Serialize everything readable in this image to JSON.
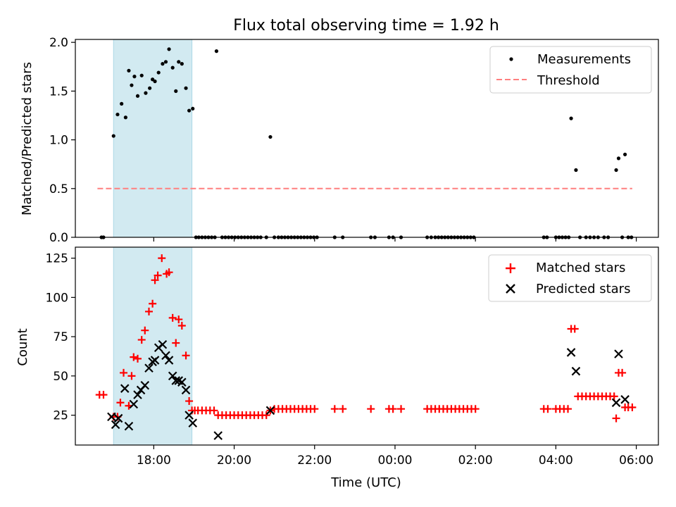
{
  "title": "Flux total observing time = 1.92 h",
  "colors": {
    "span": "#add8e6",
    "threshold": "#ff7f7f",
    "measurement": "#000000",
    "matched": "#ff0000",
    "predicted": "#000000"
  },
  "chart_data": [
    {
      "type": "scatter",
      "panel": "top",
      "ylabel": "Matched/Predicted stars",
      "xlim": [
        16.05,
        30.55
      ],
      "ylim": [
        0,
        2.03
      ],
      "yticks": [
        0.0,
        0.5,
        1.0,
        1.5,
        2.0
      ],
      "ytick_labels": [
        "0.0",
        "0.5",
        "1.0",
        "1.5",
        "2.0"
      ],
      "shaded_span": [
        17.0,
        18.95
      ],
      "legend": {
        "position": "top-right",
        "entries": [
          "Measurements",
          "Threshold"
        ]
      },
      "threshold": {
        "name": "Threshold",
        "value": 0.5,
        "x_range": [
          16.6,
          29.9
        ]
      },
      "series": [
        {
          "name": "Measurements",
          "points": [
            [
              16.7,
              0
            ],
            [
              16.75,
              0
            ],
            [
              17.0,
              1.04
            ],
            [
              17.1,
              1.26
            ],
            [
              17.2,
              1.37
            ],
            [
              17.3,
              1.23
            ],
            [
              17.38,
              1.71
            ],
            [
              17.45,
              1.56
            ],
            [
              17.52,
              1.65
            ],
            [
              17.6,
              1.45
            ],
            [
              17.7,
              1.66
            ],
            [
              17.8,
              1.48
            ],
            [
              17.9,
              1.53
            ],
            [
              17.97,
              1.62
            ],
            [
              18.03,
              1.6
            ],
            [
              18.12,
              1.69
            ],
            [
              18.22,
              1.78
            ],
            [
              18.3,
              1.8
            ],
            [
              18.38,
              1.93
            ],
            [
              18.47,
              1.74
            ],
            [
              18.55,
              1.5
            ],
            [
              18.62,
              1.8
            ],
            [
              18.7,
              1.78
            ],
            [
              18.8,
              1.53
            ],
            [
              18.88,
              1.3
            ],
            [
              18.97,
              1.32
            ],
            [
              19.05,
              0
            ],
            [
              19.12,
              0
            ],
            [
              19.2,
              0
            ],
            [
              19.28,
              0
            ],
            [
              19.36,
              0
            ],
            [
              19.44,
              0
            ],
            [
              19.52,
              0
            ],
            [
              19.56,
              1.91
            ],
            [
              19.7,
              0
            ],
            [
              19.78,
              0
            ],
            [
              19.86,
              0
            ],
            [
              19.94,
              0
            ],
            [
              20.02,
              0
            ],
            [
              20.1,
              0
            ],
            [
              20.18,
              0
            ],
            [
              20.26,
              0
            ],
            [
              20.34,
              0
            ],
            [
              20.42,
              0
            ],
            [
              20.5,
              0
            ],
            [
              20.58,
              0
            ],
            [
              20.66,
              0
            ],
            [
              20.8,
              0
            ],
            [
              20.9,
              1.03
            ],
            [
              21.0,
              0
            ],
            [
              21.1,
              0
            ],
            [
              21.18,
              0
            ],
            [
              21.26,
              0
            ],
            [
              21.34,
              0
            ],
            [
              21.42,
              0
            ],
            [
              21.5,
              0
            ],
            [
              21.58,
              0
            ],
            [
              21.66,
              0
            ],
            [
              21.74,
              0
            ],
            [
              21.82,
              0
            ],
            [
              21.9,
              0
            ],
            [
              21.98,
              0
            ],
            [
              22.06,
              0
            ],
            [
              22.5,
              0
            ],
            [
              22.7,
              0
            ],
            [
              23.4,
              0
            ],
            [
              23.5,
              0
            ],
            [
              23.85,
              0
            ],
            [
              23.95,
              0
            ],
            [
              24.15,
              0
            ],
            [
              24.8,
              0
            ],
            [
              24.9,
              0
            ],
            [
              25.0,
              0
            ],
            [
              25.08,
              0
            ],
            [
              25.16,
              0
            ],
            [
              25.24,
              0
            ],
            [
              25.32,
              0
            ],
            [
              25.4,
              0
            ],
            [
              25.48,
              0
            ],
            [
              25.56,
              0
            ],
            [
              25.64,
              0
            ],
            [
              25.72,
              0
            ],
            [
              25.8,
              0
            ],
            [
              25.88,
              0
            ],
            [
              25.96,
              0
            ],
            [
              27.7,
              0
            ],
            [
              27.78,
              0
            ],
            [
              28.0,
              0
            ],
            [
              28.08,
              0
            ],
            [
              28.16,
              0
            ],
            [
              28.24,
              0
            ],
            [
              28.32,
              0
            ],
            [
              28.38,
              1.22
            ],
            [
              28.5,
              0.69
            ],
            [
              28.6,
              0
            ],
            [
              28.75,
              0
            ],
            [
              28.85,
              0
            ],
            [
              28.95,
              0
            ],
            [
              29.05,
              0
            ],
            [
              29.2,
              0
            ],
            [
              29.3,
              0
            ],
            [
              29.5,
              0.69
            ],
            [
              29.56,
              0.81
            ],
            [
              29.65,
              0
            ],
            [
              29.72,
              0.85
            ],
            [
              29.8,
              0
            ],
            [
              29.88,
              0
            ]
          ]
        }
      ]
    },
    {
      "type": "scatter",
      "panel": "bottom",
      "ylabel": "Count",
      "xlabel": "Time (UTC)",
      "xlim": [
        16.05,
        30.55
      ],
      "ylim": [
        6,
        132
      ],
      "yticks": [
        25,
        50,
        75,
        100,
        125
      ],
      "ytick_labels": [
        "25",
        "50",
        "75",
        "100",
        "125"
      ],
      "xticks": [
        18,
        20,
        22,
        24,
        26,
        28,
        30
      ],
      "xtick_labels": [
        "18:00",
        "20:00",
        "22:00",
        "00:00",
        "02:00",
        "04:00",
        "06:00"
      ],
      "shaded_span": [
        17.0,
        18.95
      ],
      "legend": {
        "position": "top-right",
        "entries": [
          "Matched stars",
          "Predicted stars"
        ]
      },
      "series": [
        {
          "name": "Matched stars",
          "marker": "plus",
          "points": [
            [
              16.65,
              38
            ],
            [
              16.75,
              38
            ],
            [
              17.0,
              24
            ],
            [
              17.1,
              24
            ],
            [
              17.17,
              33
            ],
            [
              17.25,
              52
            ],
            [
              17.38,
              31
            ],
            [
              17.45,
              50
            ],
            [
              17.5,
              62
            ],
            [
              17.6,
              61
            ],
            [
              17.7,
              73
            ],
            [
              17.78,
              79
            ],
            [
              17.88,
              91
            ],
            [
              17.97,
              96
            ],
            [
              18.03,
              111
            ],
            [
              18.1,
              114
            ],
            [
              18.2,
              125
            ],
            [
              18.32,
              115
            ],
            [
              18.38,
              116
            ],
            [
              18.47,
              87
            ],
            [
              18.55,
              71
            ],
            [
              18.62,
              86
            ],
            [
              18.7,
              82
            ],
            [
              18.8,
              63
            ],
            [
              18.88,
              34
            ],
            [
              18.95,
              28
            ],
            [
              19.02,
              28
            ],
            [
              19.1,
              28
            ],
            [
              19.2,
              28
            ],
            [
              19.3,
              28
            ],
            [
              19.4,
              28
            ],
            [
              19.5,
              28
            ],
            [
              19.6,
              25
            ],
            [
              19.7,
              25
            ],
            [
              19.8,
              25
            ],
            [
              19.9,
              25
            ],
            [
              20.0,
              25
            ],
            [
              20.1,
              25
            ],
            [
              20.2,
              25
            ],
            [
              20.3,
              25
            ],
            [
              20.4,
              25
            ],
            [
              20.5,
              25
            ],
            [
              20.6,
              25
            ],
            [
              20.7,
              25
            ],
            [
              20.8,
              25
            ],
            [
              20.9,
              28
            ],
            [
              21.0,
              29
            ],
            [
              21.1,
              29
            ],
            [
              21.2,
              29
            ],
            [
              21.3,
              29
            ],
            [
              21.4,
              29
            ],
            [
              21.5,
              29
            ],
            [
              21.6,
              29
            ],
            [
              21.7,
              29
            ],
            [
              21.8,
              29
            ],
            [
              21.9,
              29
            ],
            [
              22.0,
              29
            ],
            [
              22.5,
              29
            ],
            [
              22.7,
              29
            ],
            [
              23.4,
              29
            ],
            [
              23.85,
              29
            ],
            [
              23.95,
              29
            ],
            [
              24.15,
              29
            ],
            [
              24.8,
              29
            ],
            [
              24.9,
              29
            ],
            [
              25.0,
              29
            ],
            [
              25.1,
              29
            ],
            [
              25.2,
              29
            ],
            [
              25.3,
              29
            ],
            [
              25.4,
              29
            ],
            [
              25.5,
              29
            ],
            [
              25.6,
              29
            ],
            [
              25.7,
              29
            ],
            [
              25.8,
              29
            ],
            [
              25.9,
              29
            ],
            [
              26.0,
              29
            ],
            [
              27.7,
              29
            ],
            [
              27.8,
              29
            ],
            [
              28.0,
              29
            ],
            [
              28.1,
              29
            ],
            [
              28.2,
              29
            ],
            [
              28.3,
              29
            ],
            [
              28.38,
              80
            ],
            [
              28.47,
              80
            ],
            [
              28.55,
              37
            ],
            [
              28.65,
              37
            ],
            [
              28.75,
              37
            ],
            [
              28.85,
              37
            ],
            [
              28.95,
              37
            ],
            [
              29.05,
              37
            ],
            [
              29.15,
              37
            ],
            [
              29.25,
              37
            ],
            [
              29.35,
              37
            ],
            [
              29.45,
              37
            ],
            [
              29.5,
              23
            ],
            [
              29.56,
              52
            ],
            [
              29.65,
              52
            ],
            [
              29.72,
              30
            ],
            [
              29.8,
              30
            ],
            [
              29.9,
              30
            ]
          ]
        },
        {
          "name": "Predicted stars",
          "marker": "x",
          "points": [
            [
              16.95,
              24
            ],
            [
              17.05,
              19
            ],
            [
              17.12,
              23
            ],
            [
              17.28,
              42
            ],
            [
              17.38,
              18
            ],
            [
              17.5,
              32
            ],
            [
              17.6,
              38
            ],
            [
              17.68,
              41
            ],
            [
              17.78,
              44
            ],
            [
              17.88,
              55
            ],
            [
              17.97,
              59
            ],
            [
              18.03,
              60
            ],
            [
              18.12,
              68
            ],
            [
              18.22,
              70
            ],
            [
              18.3,
              63
            ],
            [
              18.38,
              60
            ],
            [
              18.47,
              50
            ],
            [
              18.55,
              47
            ],
            [
              18.62,
              47
            ],
            [
              18.7,
              46
            ],
            [
              18.8,
              41
            ],
            [
              18.88,
              25
            ],
            [
              18.97,
              20
            ],
            [
              19.6,
              12
            ],
            [
              20.9,
              28
            ],
            [
              28.38,
              65
            ],
            [
              28.5,
              53
            ],
            [
              29.5,
              33
            ],
            [
              29.56,
              64
            ],
            [
              29.72,
              35
            ]
          ]
        }
      ]
    }
  ]
}
